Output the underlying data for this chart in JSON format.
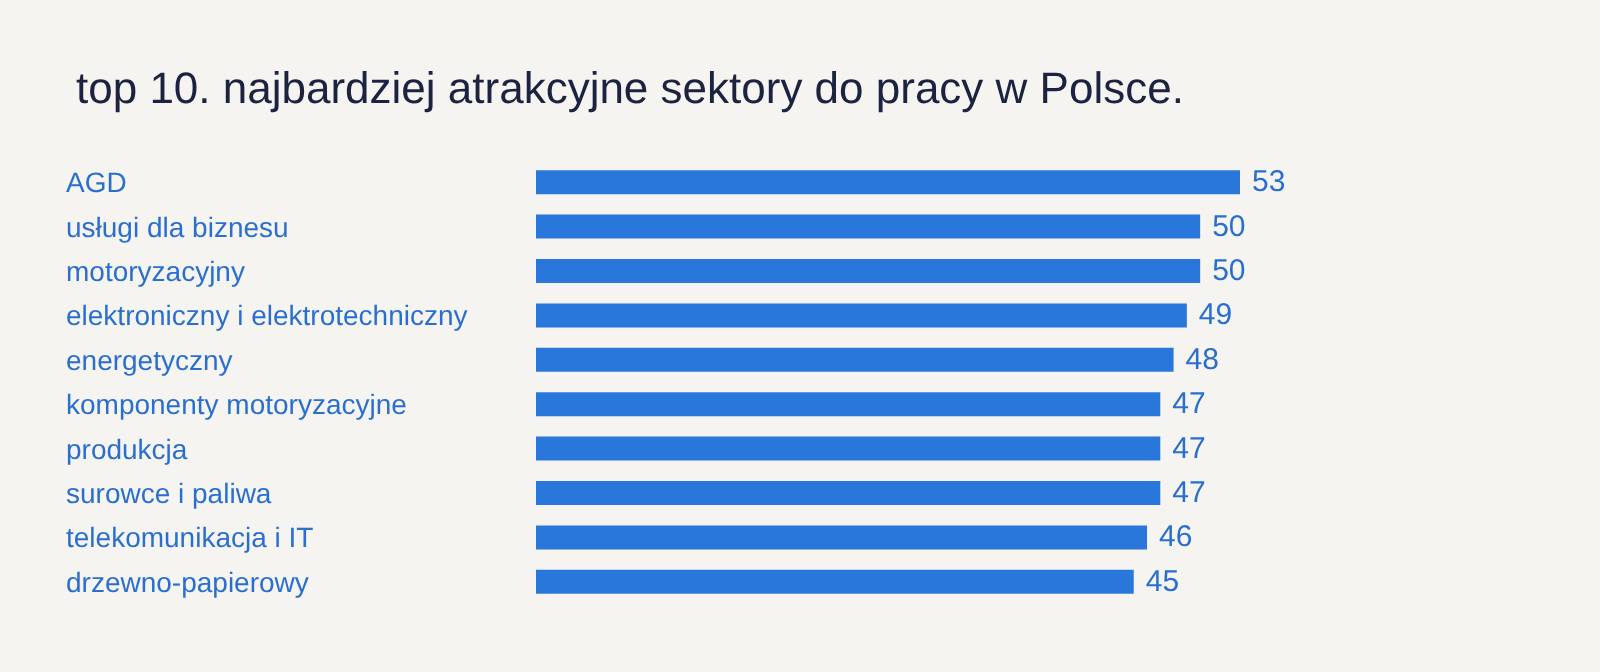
{
  "chart_data": {
    "type": "bar",
    "orientation": "horizontal",
    "title": "top 10. najbardziej atrakcyjne sektory do pracy w Polsce.",
    "categories": [
      "AGD",
      "usługi dla biznesu",
      "motoryzacyjny",
      "elektroniczny i elektrotechniczny",
      "energetyczny",
      "komponenty motoryzacyjne",
      "produkcja",
      "surowce i paliwa",
      "telekomunikacja i IT",
      "drzewno-papierowy"
    ],
    "values": [
      53,
      50,
      50,
      49,
      48,
      47,
      47,
      47,
      46,
      45
    ],
    "color": "#2a77dc",
    "data_labels": true,
    "grid": false,
    "tick_labels": "y"
  }
}
